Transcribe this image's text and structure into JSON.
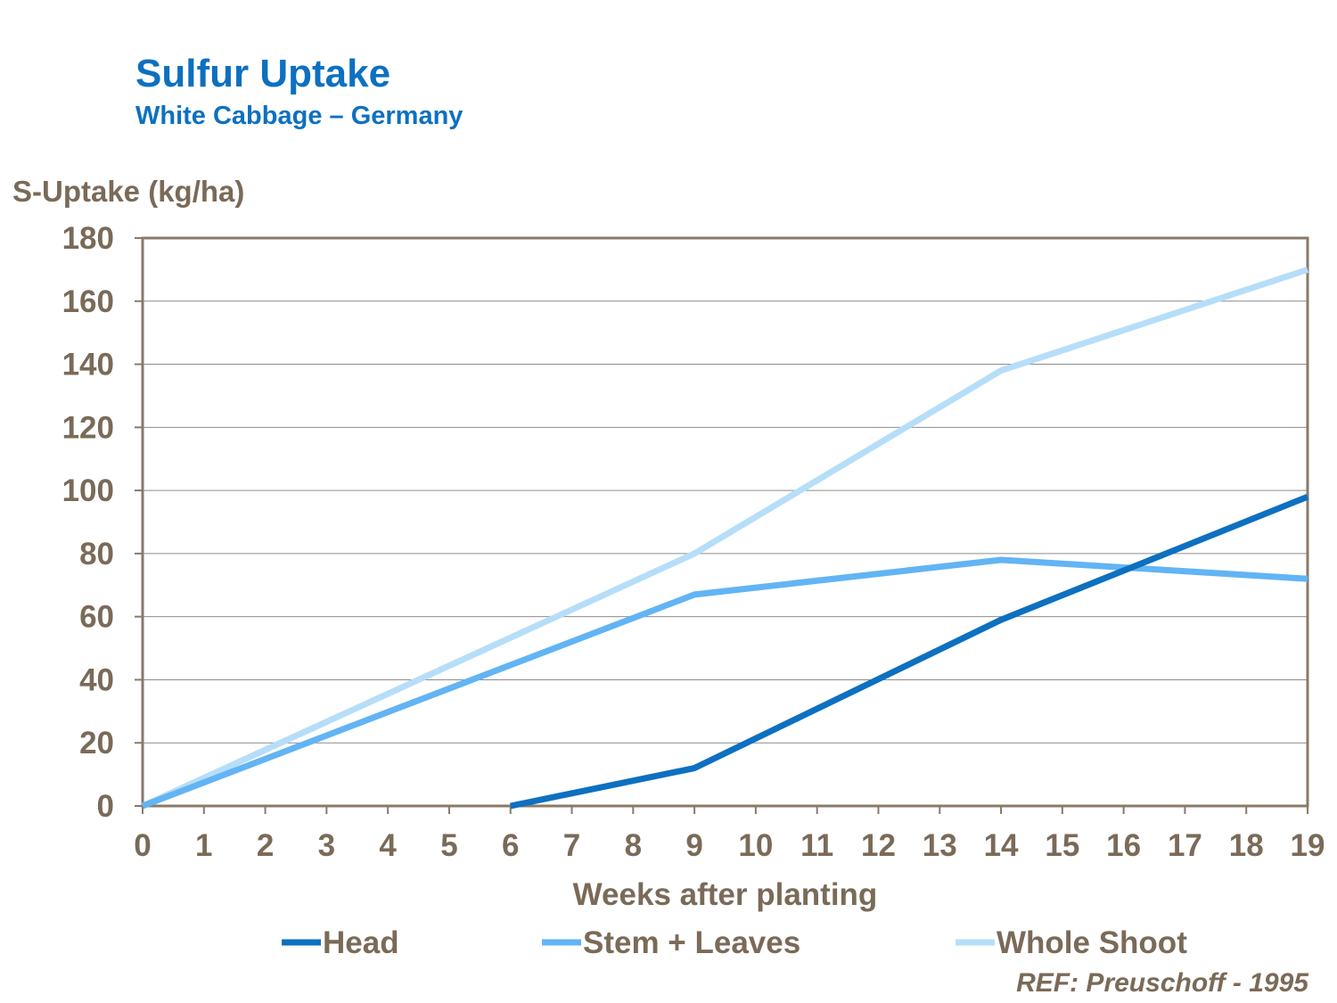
{
  "chart_data": {
    "type": "line",
    "title": "Sulfur Uptake",
    "subtitle": "White Cabbage – Germany",
    "ylabel": "S-Uptake (kg/ha)",
    "xlabel": "Weeks after planting",
    "ylim": [
      0,
      180
    ],
    "yticks": [
      0,
      20,
      40,
      60,
      80,
      100,
      120,
      140,
      160,
      180
    ],
    "xlim": [
      0,
      19
    ],
    "xticks": [
      0,
      1,
      2,
      3,
      4,
      5,
      6,
      7,
      8,
      9,
      10,
      11,
      12,
      13,
      14,
      15,
      16,
      17,
      18,
      19
    ],
    "grid": true,
    "legend_position": "bottom",
    "series": [
      {
        "name": "Head",
        "color": "#0d70c0",
        "x": [
          6,
          9,
          14,
          19
        ],
        "y": [
          0,
          12,
          59,
          98
        ]
      },
      {
        "name": "Stem + Leaves",
        "color": "#62b4f4",
        "x": [
          0,
          9,
          14,
          19
        ],
        "y": [
          0,
          67,
          78,
          72
        ]
      },
      {
        "name": "Whole Shoot",
        "color": "#b6def9",
        "x": [
          0,
          9,
          14,
          19
        ],
        "y": [
          0,
          80,
          138,
          170
        ]
      }
    ],
    "source_note": "REF: Preuschoff - 1995"
  }
}
